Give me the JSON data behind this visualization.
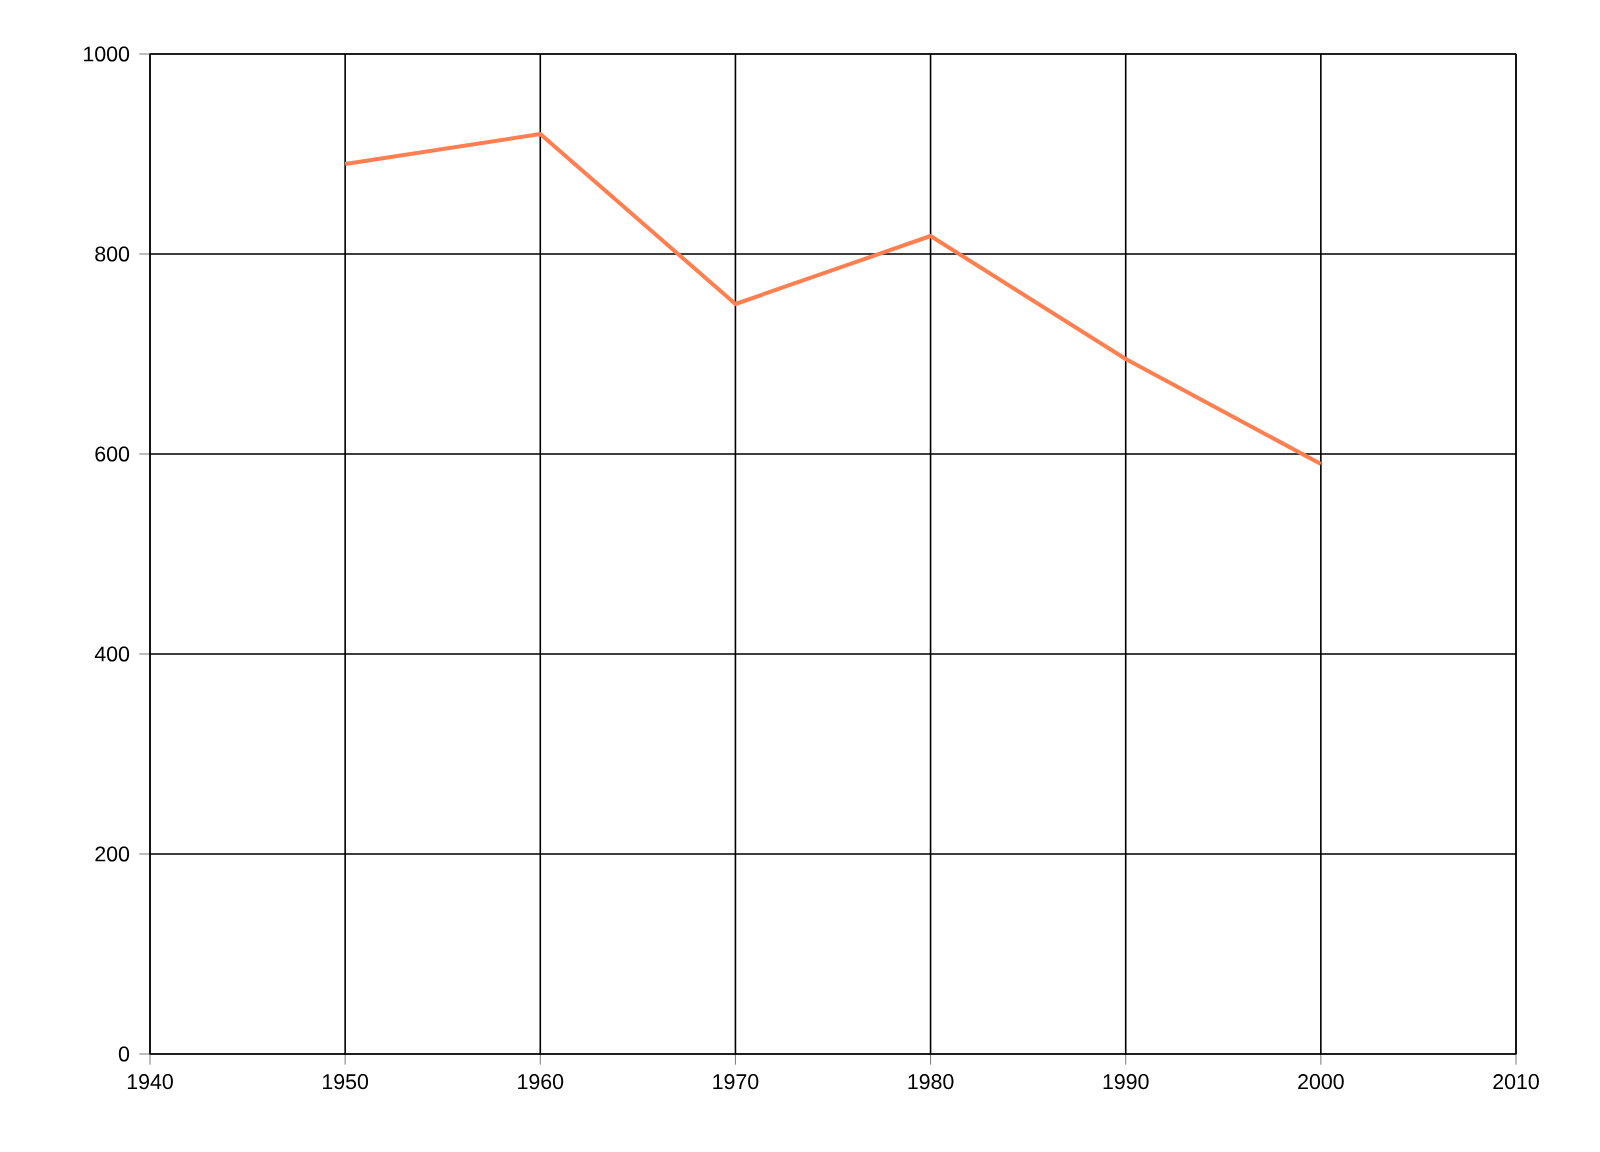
{
  "chart_data": {
    "type": "line",
    "x": [
      1950,
      1960,
      1970,
      1980,
      1990,
      2000
    ],
    "series": [
      {
        "color": "#ff7f50",
        "values": [
          890,
          920,
          750,
          818,
          695,
          590
        ]
      }
    ],
    "xlim": [
      1940,
      2010
    ],
    "xticks": [
      1940,
      1950,
      1960,
      1970,
      1980,
      1990,
      2000,
      2010
    ],
    "ylim": [
      0,
      1000
    ],
    "yticks": [
      0,
      200,
      400,
      600,
      800,
      1000
    ],
    "grid": true,
    "marker": "none",
    "line_style": "solid"
  }
}
